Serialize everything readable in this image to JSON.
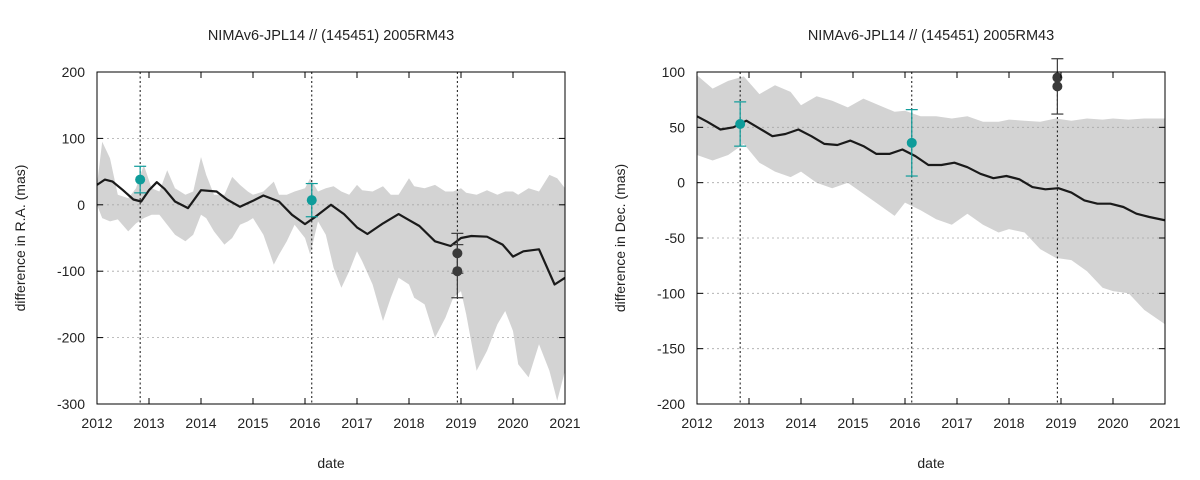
{
  "chart_data": [
    {
      "type": "line",
      "title": "NIMAv6-JPL14 // (145451) 2005RM43",
      "xlabel": "date",
      "ylabel": "difference in R.A. (mas)",
      "xlim": [
        2012,
        2021
      ],
      "ylim": [
        -300,
        200
      ],
      "xticks": [
        2012,
        2013,
        2014,
        2015,
        2016,
        2017,
        2018,
        2019,
        2020,
        2021
      ],
      "yticks": [
        -300,
        -200,
        -100,
        0,
        100,
        200
      ],
      "grid": "horizontal dashed",
      "vlines": [
        2012.83,
        2016.13,
        2018.93
      ],
      "series": [
        {
          "name": "difference",
          "color": "#1a1a1a",
          "x": [
            2012.0,
            2012.15,
            2012.3,
            2012.5,
            2012.7,
            2012.85,
            2013.0,
            2013.15,
            2013.3,
            2013.5,
            2013.75,
            2014.0,
            2014.3,
            2014.5,
            2014.75,
            2015.0,
            2015.2,
            2015.5,
            2015.75,
            2016.0,
            2016.2,
            2016.5,
            2016.75,
            2017.0,
            2017.2,
            2017.5,
            2017.8,
            2018.0,
            2018.2,
            2018.5,
            2018.8,
            2019.0,
            2019.2,
            2019.5,
            2019.8,
            2020.0,
            2020.2,
            2020.5,
            2020.8,
            2021.0
          ],
          "y": [
            30,
            38,
            35,
            22,
            8,
            5,
            22,
            34,
            24,
            5,
            -5,
            22,
            20,
            8,
            -3,
            6,
            14,
            5,
            -15,
            -29,
            -18,
            0,
            -14,
            -34,
            -44,
            -28,
            -14,
            -23,
            -32,
            -55,
            -62,
            -50,
            -47,
            -48,
            -60,
            -78,
            -70,
            -67,
            -120,
            -110
          ]
        }
      ],
      "band": {
        "name": "uncertainty",
        "color": "#d3d3d3",
        "x": [
          2012.0,
          2012.1,
          2012.25,
          2012.4,
          2012.6,
          2012.75,
          2012.9,
          2013.05,
          2013.2,
          2013.35,
          2013.5,
          2013.7,
          2013.85,
          2014.0,
          2014.1,
          2014.25,
          2014.45,
          2014.6,
          2014.75,
          2014.9,
          2015.0,
          2015.2,
          2015.4,
          2015.5,
          2015.65,
          2015.8,
          2016.0,
          2016.1,
          2016.25,
          2016.4,
          2016.55,
          2016.7,
          2016.85,
          2017.0,
          2017.1,
          2017.3,
          2017.5,
          2017.65,
          2017.8,
          2018.0,
          2018.1,
          2018.3,
          2018.5,
          2018.7,
          2018.85,
          2019.0,
          2019.1,
          2019.3,
          2019.5,
          2019.7,
          2019.85,
          2020.0,
          2020.1,
          2020.3,
          2020.5,
          2020.7,
          2020.85,
          2021.0
        ],
        "upper": [
          30,
          95,
          70,
          15,
          10,
          25,
          60,
          25,
          20,
          52,
          25,
          15,
          20,
          72,
          45,
          15,
          15,
          42,
          30,
          20,
          15,
          20,
          35,
          15,
          15,
          20,
          25,
          40,
          20,
          25,
          28,
          20,
          15,
          30,
          22,
          20,
          28,
          15,
          15,
          40,
          28,
          25,
          30,
          20,
          20,
          25,
          18,
          15,
          22,
          15,
          20,
          20,
          15,
          25,
          20,
          45,
          40,
          25
        ],
        "lower": [
          0,
          -20,
          -25,
          -22,
          -40,
          -28,
          -20,
          -15,
          -15,
          -30,
          -45,
          -55,
          -45,
          -15,
          -20,
          -40,
          -60,
          -50,
          -30,
          -25,
          -20,
          -45,
          -90,
          -75,
          -55,
          -30,
          -50,
          -75,
          -25,
          -45,
          -95,
          -125,
          -100,
          -70,
          -85,
          -120,
          -175,
          -140,
          -110,
          -120,
          -140,
          -150,
          -200,
          -170,
          -140,
          -130,
          -165,
          -250,
          -220,
          -180,
          -160,
          -190,
          -240,
          -260,
          -210,
          -250,
          -295,
          -250
        ]
      },
      "observations": [
        {
          "date": 2012.83,
          "value": 38,
          "error": 20,
          "color": "#0e9c9a"
        },
        {
          "date": 2016.13,
          "value": 7,
          "error": 25,
          "color": "#0e9c9a"
        },
        {
          "date": 2018.93,
          "value": -73,
          "error": 30,
          "color": "#3a3a3a"
        },
        {
          "date": 2018.93,
          "value": -100,
          "error": 40,
          "color": "#3a3a3a"
        }
      ]
    },
    {
      "type": "line",
      "title": "NIMAv6-JPL14 // (145451) 2005RM43",
      "xlabel": "date",
      "ylabel": "difference in Dec. (mas)",
      "xlim": [
        2012,
        2021
      ],
      "ylim": [
        -200,
        100
      ],
      "xticks": [
        2012,
        2013,
        2014,
        2015,
        2016,
        2017,
        2018,
        2019,
        2020,
        2021
      ],
      "yticks": [
        -200,
        -150,
        -100,
        -50,
        0,
        50,
        100
      ],
      "grid": "horizontal dashed",
      "vlines": [
        2012.83,
        2016.13,
        2018.93
      ],
      "series": [
        {
          "name": "difference",
          "color": "#1a1a1a",
          "x": [
            2012.0,
            2012.2,
            2012.45,
            2012.7,
            2012.95,
            2013.2,
            2013.45,
            2013.7,
            2013.95,
            2014.2,
            2014.45,
            2014.7,
            2014.95,
            2015.2,
            2015.45,
            2015.7,
            2015.95,
            2016.2,
            2016.45,
            2016.7,
            2016.95,
            2017.2,
            2017.45,
            2017.7,
            2017.95,
            2018.2,
            2018.45,
            2018.7,
            2018.95,
            2019.2,
            2019.45,
            2019.7,
            2019.95,
            2020.2,
            2020.45,
            2020.7,
            2021.0
          ],
          "y": [
            60,
            55,
            48,
            50,
            56,
            49,
            42,
            44,
            48,
            42,
            35,
            34,
            38,
            33,
            26,
            26,
            30,
            24,
            16,
            16,
            18,
            14,
            8,
            4,
            6,
            3,
            -4,
            -6,
            -5,
            -9,
            -16,
            -19,
            -19,
            -22,
            -28,
            -31,
            -34
          ]
        }
      ],
      "band": {
        "name": "uncertainty",
        "color": "#d3d3d3",
        "x": [
          2012.0,
          2012.3,
          2012.6,
          2012.9,
          2013.2,
          2013.5,
          2013.8,
          2014.0,
          2014.3,
          2014.6,
          2014.9,
          2015.2,
          2015.5,
          2015.8,
          2016.0,
          2016.3,
          2016.6,
          2016.9,
          2017.2,
          2017.5,
          2017.8,
          2018.0,
          2018.3,
          2018.6,
          2018.9,
          2019.2,
          2019.5,
          2019.8,
          2020.0,
          2020.3,
          2020.6,
          2021.0
        ],
        "upper": [
          97,
          85,
          92,
          96,
          80,
          88,
          82,
          70,
          78,
          74,
          68,
          76,
          70,
          64,
          65,
          60,
          60,
          58,
          60,
          55,
          55,
          57,
          56,
          55,
          58,
          56,
          58,
          57,
          58,
          57,
          58,
          58
        ],
        "lower": [
          25,
          20,
          25,
          35,
          18,
          10,
          5,
          10,
          0,
          -5,
          0,
          -10,
          -20,
          -30,
          -18,
          -25,
          -33,
          -38,
          -28,
          -38,
          -45,
          -42,
          -45,
          -60,
          -68,
          -70,
          -80,
          -95,
          -98,
          -100,
          -115,
          -128
        ]
      },
      "observations": [
        {
          "date": 2012.83,
          "value": 53,
          "error": 20,
          "color": "#0e9c9a"
        },
        {
          "date": 2016.13,
          "value": 36,
          "error": 30,
          "color": "#0e9c9a"
        },
        {
          "date": 2018.93,
          "value": 95,
          "error": 0,
          "color": "#3a3a3a"
        },
        {
          "date": 2018.93,
          "value": 87,
          "error": 25,
          "color": "#3a3a3a"
        }
      ]
    }
  ]
}
